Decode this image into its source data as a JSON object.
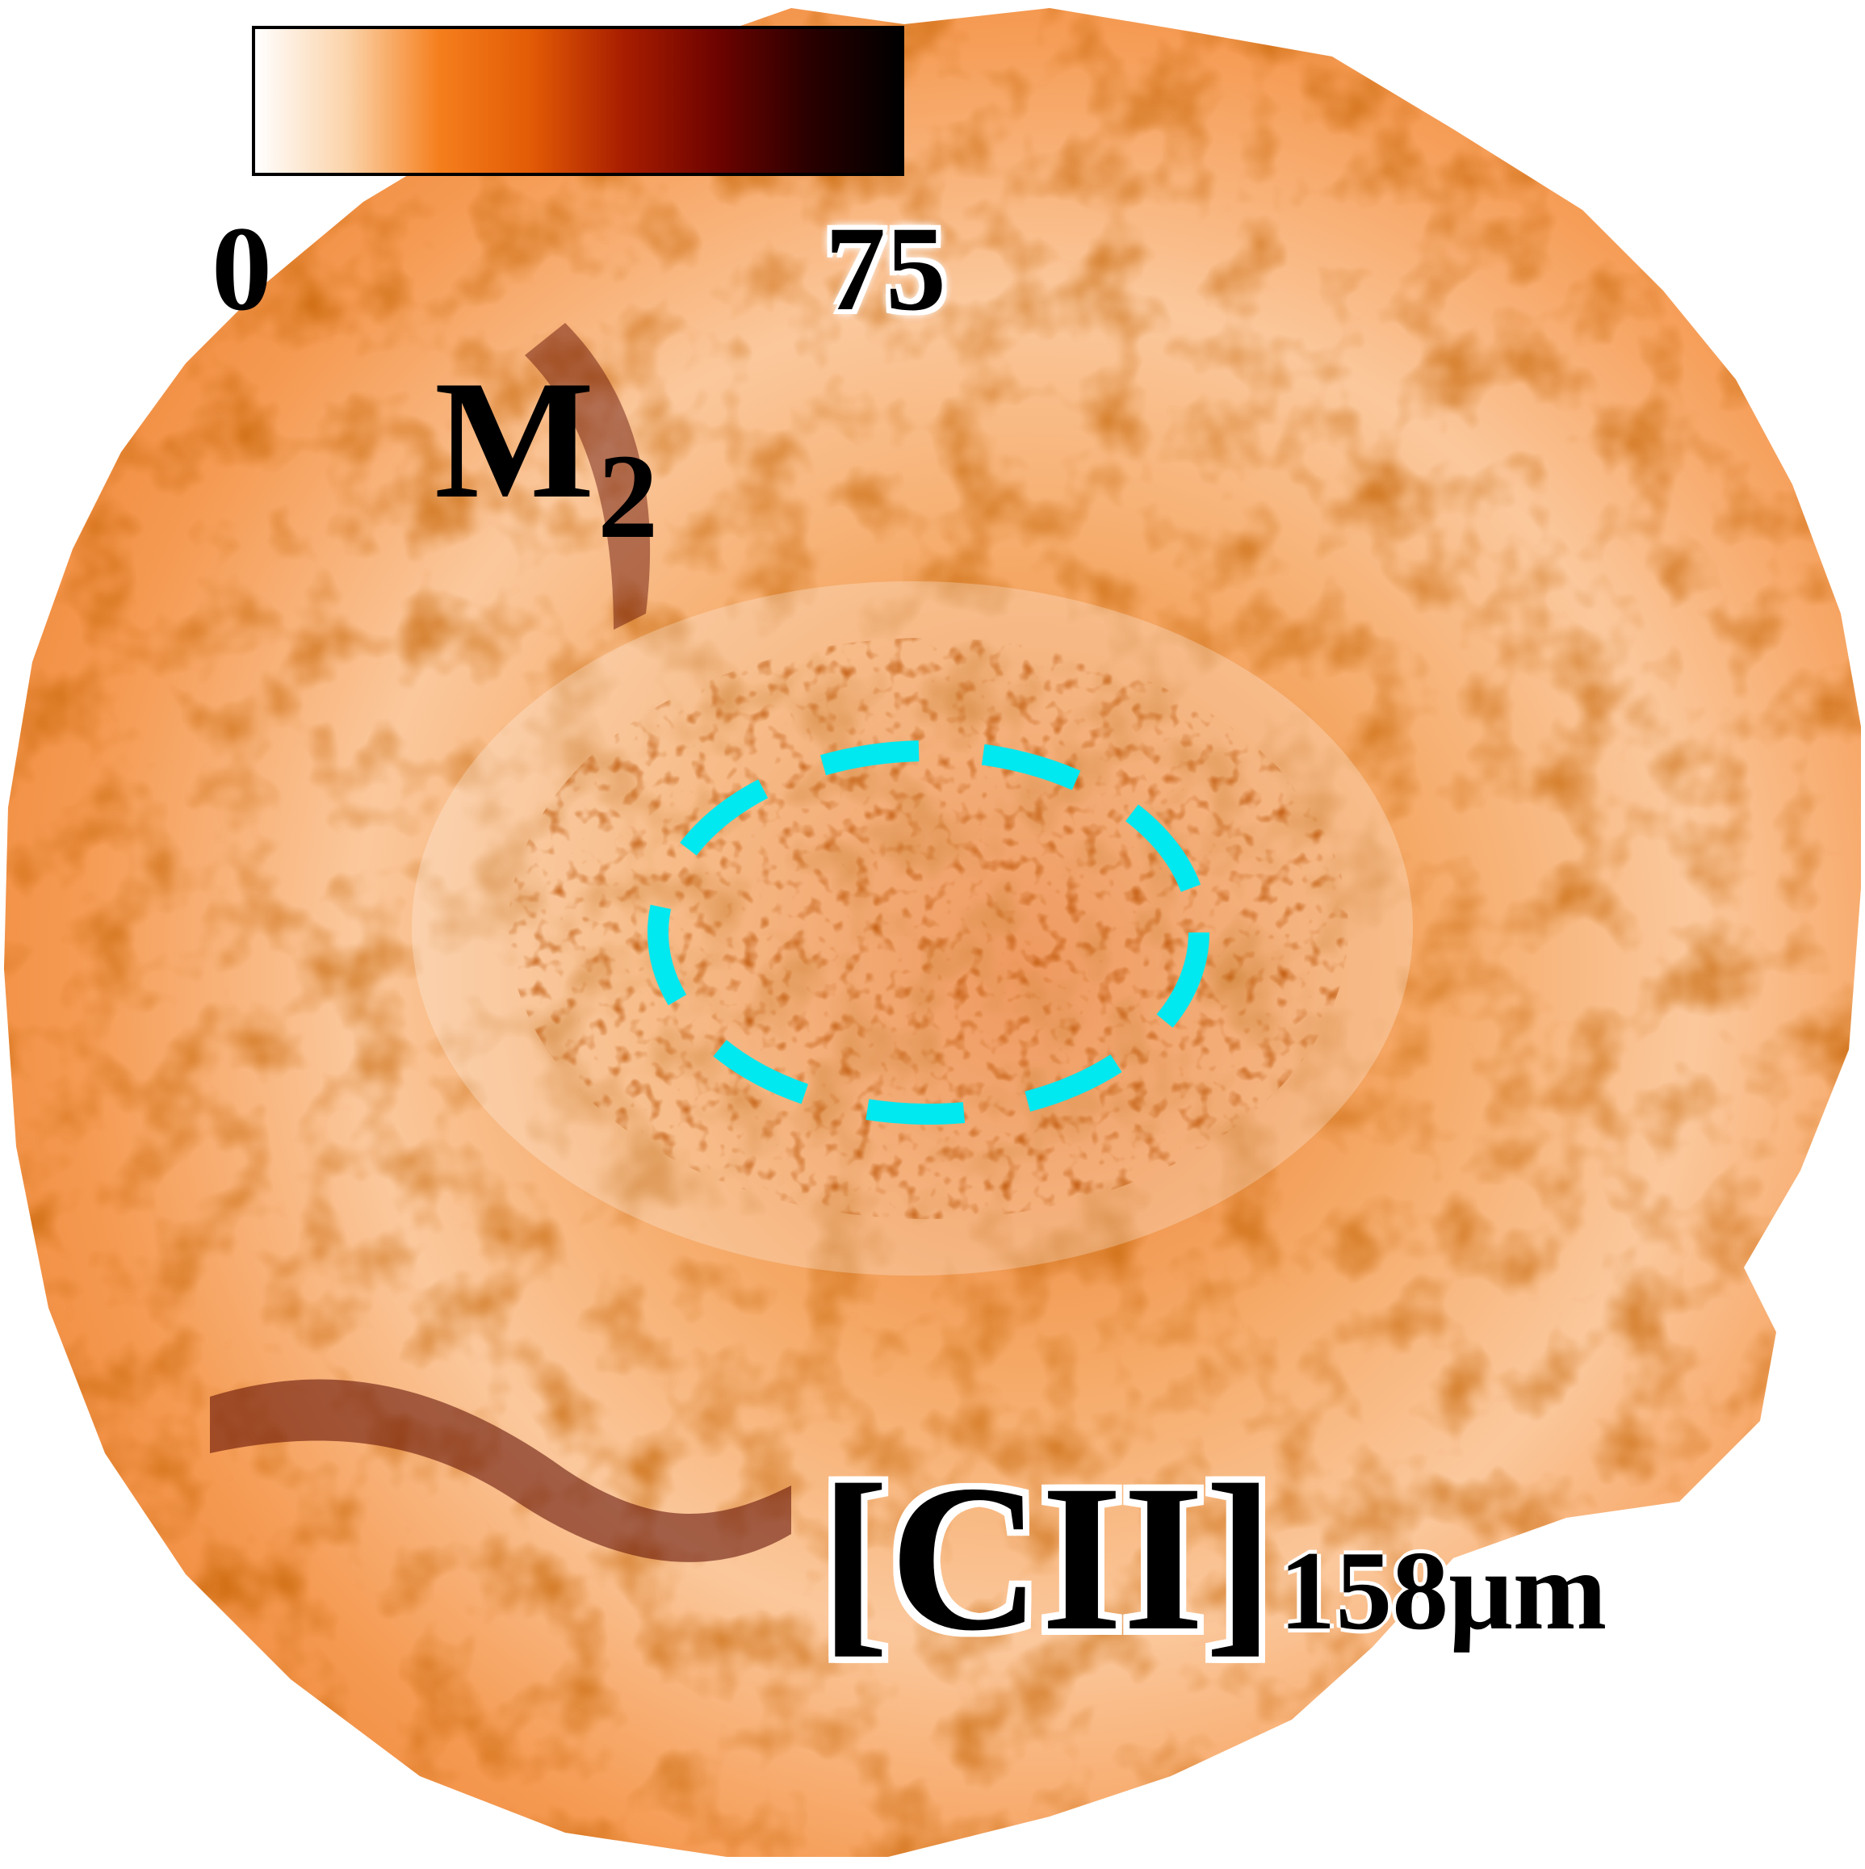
{
  "colormap": {
    "stops": [
      "#ffffff",
      "#fbd3a9",
      "#f57e1c",
      "#e25a05",
      "#a81d00",
      "#6e0300",
      "#2a0000",
      "#000000"
    ],
    "min_label": "0",
    "max_label": "75"
  },
  "quantity": {
    "symbol": "M",
    "subscript": "2"
  },
  "line": {
    "species": "[CII]",
    "wavelength": "158μm"
  },
  "region_marker": {
    "color": "#00e8f0",
    "style": "dashed-ellipse"
  },
  "map": {
    "background": "#ffffff",
    "base_color": "#f7a35c",
    "center_color": "#e97a2a"
  }
}
